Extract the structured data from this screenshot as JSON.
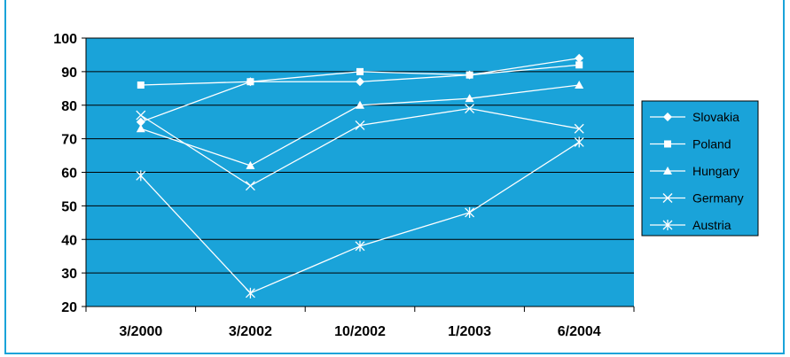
{
  "chart_data": {
    "type": "line",
    "categories": [
      "3/2000",
      "3/2002",
      "10/2002",
      "1/2003",
      "6/2004"
    ],
    "ylim": [
      20,
      100
    ],
    "yticks": [
      20,
      30,
      40,
      50,
      60,
      70,
      80,
      90,
      100
    ],
    "grid": true,
    "legend_position": "right",
    "plot_background": "#1aa3d9",
    "line_color": "#ffffff",
    "series": [
      {
        "name": "Slovakia",
        "marker": "diamond",
        "values": [
          75,
          87,
          87,
          89,
          94
        ]
      },
      {
        "name": "Poland",
        "marker": "square",
        "values": [
          86,
          87,
          90,
          89,
          92
        ]
      },
      {
        "name": "Hungary",
        "marker": "triangle",
        "values": [
          73,
          62,
          80,
          82,
          86
        ]
      },
      {
        "name": "Germany",
        "marker": "x",
        "values": [
          77,
          56,
          74,
          79,
          73
        ]
      },
      {
        "name": "Austria",
        "marker": "star",
        "values": [
          59,
          24,
          38,
          48,
          69
        ]
      }
    ]
  }
}
